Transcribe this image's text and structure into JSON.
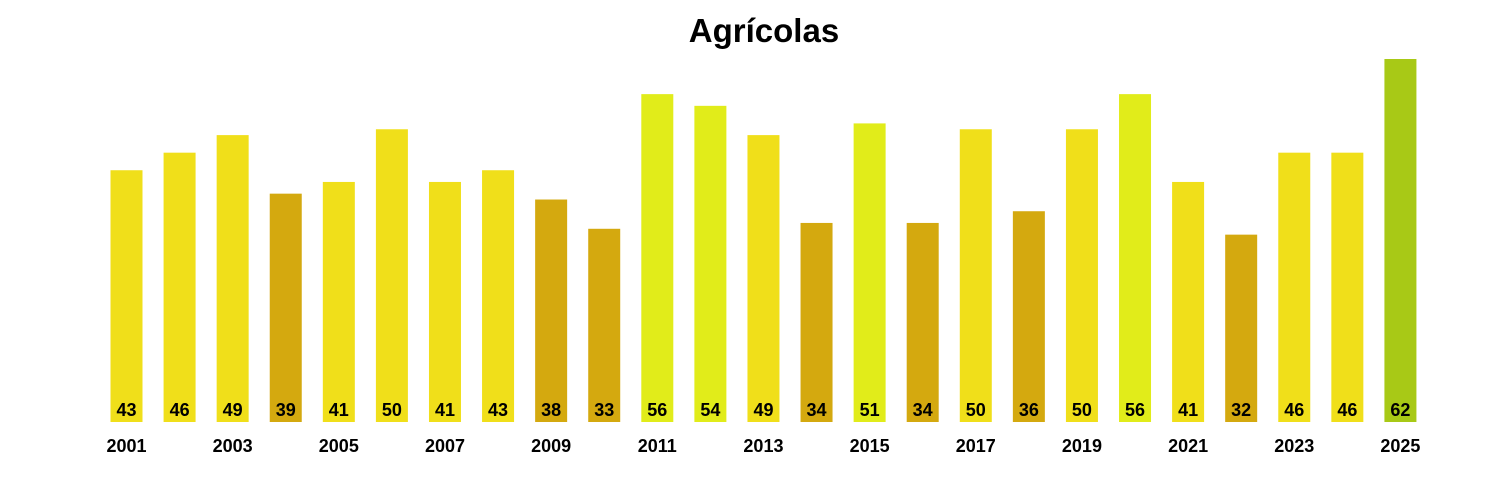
{
  "chart_data": {
    "type": "bar",
    "title": "Agrícolas",
    "xlabel": "",
    "ylabel": "",
    "grid": false,
    "categories": [
      "2001",
      "2002",
      "2003",
      "2004",
      "2005",
      "2006",
      "2007",
      "2008",
      "2009",
      "2010",
      "2011",
      "2012",
      "2013",
      "2014",
      "2015",
      "2016",
      "2017",
      "2018",
      "2019",
      "2020",
      "2021",
      "2022",
      "2023",
      "2024",
      "2025"
    ],
    "values": [
      43,
      46,
      49,
      39,
      41,
      50,
      41,
      43,
      38,
      33,
      56,
      54,
      49,
      34,
      51,
      34,
      50,
      36,
      50,
      56,
      41,
      32,
      46,
      46,
      62
    ],
    "tick_labels": [
      "2001",
      "2003",
      "2005",
      "2007",
      "2009",
      "2011",
      "2013",
      "2015",
      "2017",
      "2019",
      "2021",
      "2023",
      "2025"
    ],
    "ylim": [
      0,
      62
    ],
    "colors": {
      "low": "#d4a90f",
      "mid": "#f0df1a",
      "high": "#e1ec1a",
      "max": "#a8c916"
    },
    "color_thresholds": {
      "low_below": 40,
      "high_from": 51,
      "max_from": 60
    }
  }
}
